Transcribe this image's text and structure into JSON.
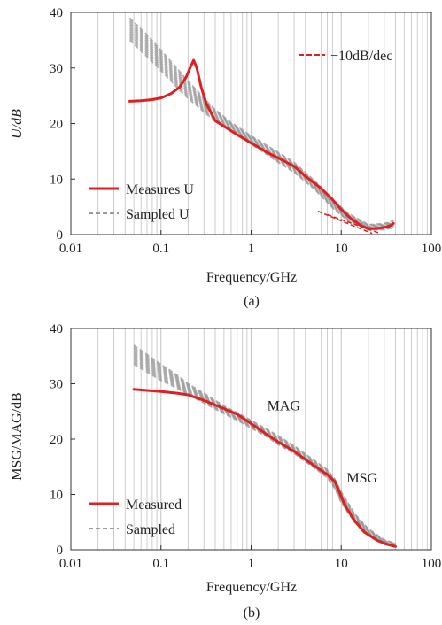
{
  "chart_data": [
    {
      "type": "line",
      "panel": "(a)",
      "xlabel": "Frequency/GHz",
      "ylabel": "U/dB",
      "xscale": "log",
      "xlim": [
        0.01,
        100
      ],
      "ylim": [
        0,
        40
      ],
      "xticks": [
        "0.01",
        "0.1",
        "1",
        "10",
        "100"
      ],
      "yticks": [
        "0",
        "10",
        "20",
        "30",
        "40"
      ],
      "grid": "vertical log gridlines",
      "legend": {
        "placement": "bottom-left",
        "entries": [
          "Measures U",
          "Sampled U"
        ]
      },
      "legend2": {
        "placement": "top-right",
        "entries": [
          "−10dB/dec"
        ]
      },
      "colors": {
        "measured": "#e02020",
        "sampled": "#9a9a9a",
        "grid": "#c8c8c8"
      },
      "series": [
        {
          "name": "Measures U",
          "style": "solid",
          "x": [
            0.045,
            0.06,
            0.08,
            0.1,
            0.13,
            0.16,
            0.19,
            0.21,
            0.23,
            0.25,
            0.28,
            0.32,
            0.4,
            0.5,
            0.7,
            1,
            1.5,
            2,
            3,
            4,
            6,
            8,
            10,
            13,
            17,
            20,
            25,
            30,
            35,
            38
          ],
          "y": [
            24,
            24.1,
            24.3,
            24.6,
            25.4,
            26.5,
            28.3,
            30,
            31.4,
            30,
            26.5,
            23.5,
            20.5,
            19.5,
            18,
            16.5,
            14.8,
            13.8,
            12.3,
            10.5,
            8.3,
            6.3,
            4.5,
            2.8,
            1.5,
            1.1,
            1.1,
            1.3,
            1.6,
            2
          ]
        },
        {
          "name": "Sampled U",
          "style": "dashed band",
          "x": [
            0.045,
            0.07,
            0.1,
            0.15,
            0.2,
            0.25,
            0.3,
            0.4,
            0.6,
            1,
            2,
            3,
            5,
            8,
            12,
            20,
            30,
            38
          ],
          "y_low": [
            35,
            32,
            29.5,
            26.5,
            24.5,
            23.2,
            22,
            20.5,
            18.6,
            16.3,
            13,
            11.2,
            8.2,
            4.8,
            2.4,
            0.8,
            0.9,
            1.2
          ],
          "y_high": [
            39,
            36,
            33.2,
            30,
            27.6,
            26,
            24.5,
            22.5,
            20.2,
            17.8,
            14.8,
            13,
            9.8,
            6.4,
            3.8,
            1.8,
            2,
            2.5
          ]
        },
        {
          "name": "−10dB/dec",
          "style": "dashed",
          "lines": [
            {
              "x": [
                5.5,
                22
              ],
              "y": [
                4.2,
                0.2
              ]
            },
            {
              "x": [
                7,
                26
              ],
              "y": [
                3.6,
                0.3
              ]
            }
          ]
        }
      ],
      "caption": "(a)"
    },
    {
      "type": "line",
      "panel": "(b)",
      "xlabel": "Frequency/GHz",
      "ylabel": "MSG/MAG/dB",
      "xscale": "log",
      "xlim": [
        0.01,
        100
      ],
      "ylim": [
        0,
        40
      ],
      "xticks": [
        "0.01",
        "0.1",
        "1",
        "10",
        "100"
      ],
      "yticks": [
        "0",
        "10",
        "20",
        "30",
        "40"
      ],
      "grid": "vertical log gridlines",
      "legend": {
        "placement": "bottom-left",
        "entries": [
          "Measured",
          "Sampled"
        ]
      },
      "annotations": [
        {
          "text": "MAG",
          "x": 2.3,
          "y": 25.2
        },
        {
          "text": "MSG",
          "x": 17,
          "y": 12.2
        }
      ],
      "colors": {
        "measured": "#e02020",
        "sampled": "#9a9a9a",
        "grid": "#c8c8c8"
      },
      "series": [
        {
          "name": "Measured",
          "style": "solid",
          "x": [
            0.05,
            0.07,
            0.1,
            0.15,
            0.2,
            0.3,
            0.5,
            0.7,
            1,
            1.5,
            2,
            3,
            5,
            7,
            8.5,
            9.5,
            11,
            14,
            18,
            25,
            32,
            40
          ],
          "y": [
            29,
            28.8,
            28.6,
            28.3,
            28,
            27,
            25.5,
            24.5,
            22.8,
            20.8,
            19.5,
            17.8,
            15.2,
            13.6,
            12.3,
            10.5,
            8,
            5.3,
            3.2,
            1.7,
            1,
            0.6
          ]
        },
        {
          "name": "Sampled",
          "style": "dashed band",
          "x": [
            0.05,
            0.1,
            0.15,
            0.2,
            0.3,
            0.5,
            0.7,
            1,
            1.5,
            2,
            3,
            5,
            7,
            8.5,
            10,
            14,
            20,
            30,
            40
          ],
          "y_low": [
            33.5,
            30.6,
            29.2,
            28,
            26.5,
            24.6,
            23.4,
            22,
            20.4,
            19,
            17.4,
            14.8,
            13,
            11,
            8.5,
            5,
            2.6,
            1,
            0.5
          ],
          "y_high": [
            37,
            33.5,
            31.6,
            30,
            28.3,
            26,
            24.8,
            23.4,
            21.8,
            20.6,
            18.8,
            16.2,
            14.5,
            12.8,
            10.5,
            6.6,
            3.8,
            1.8,
            1.2
          ]
        }
      ],
      "caption": "(b)"
    }
  ]
}
